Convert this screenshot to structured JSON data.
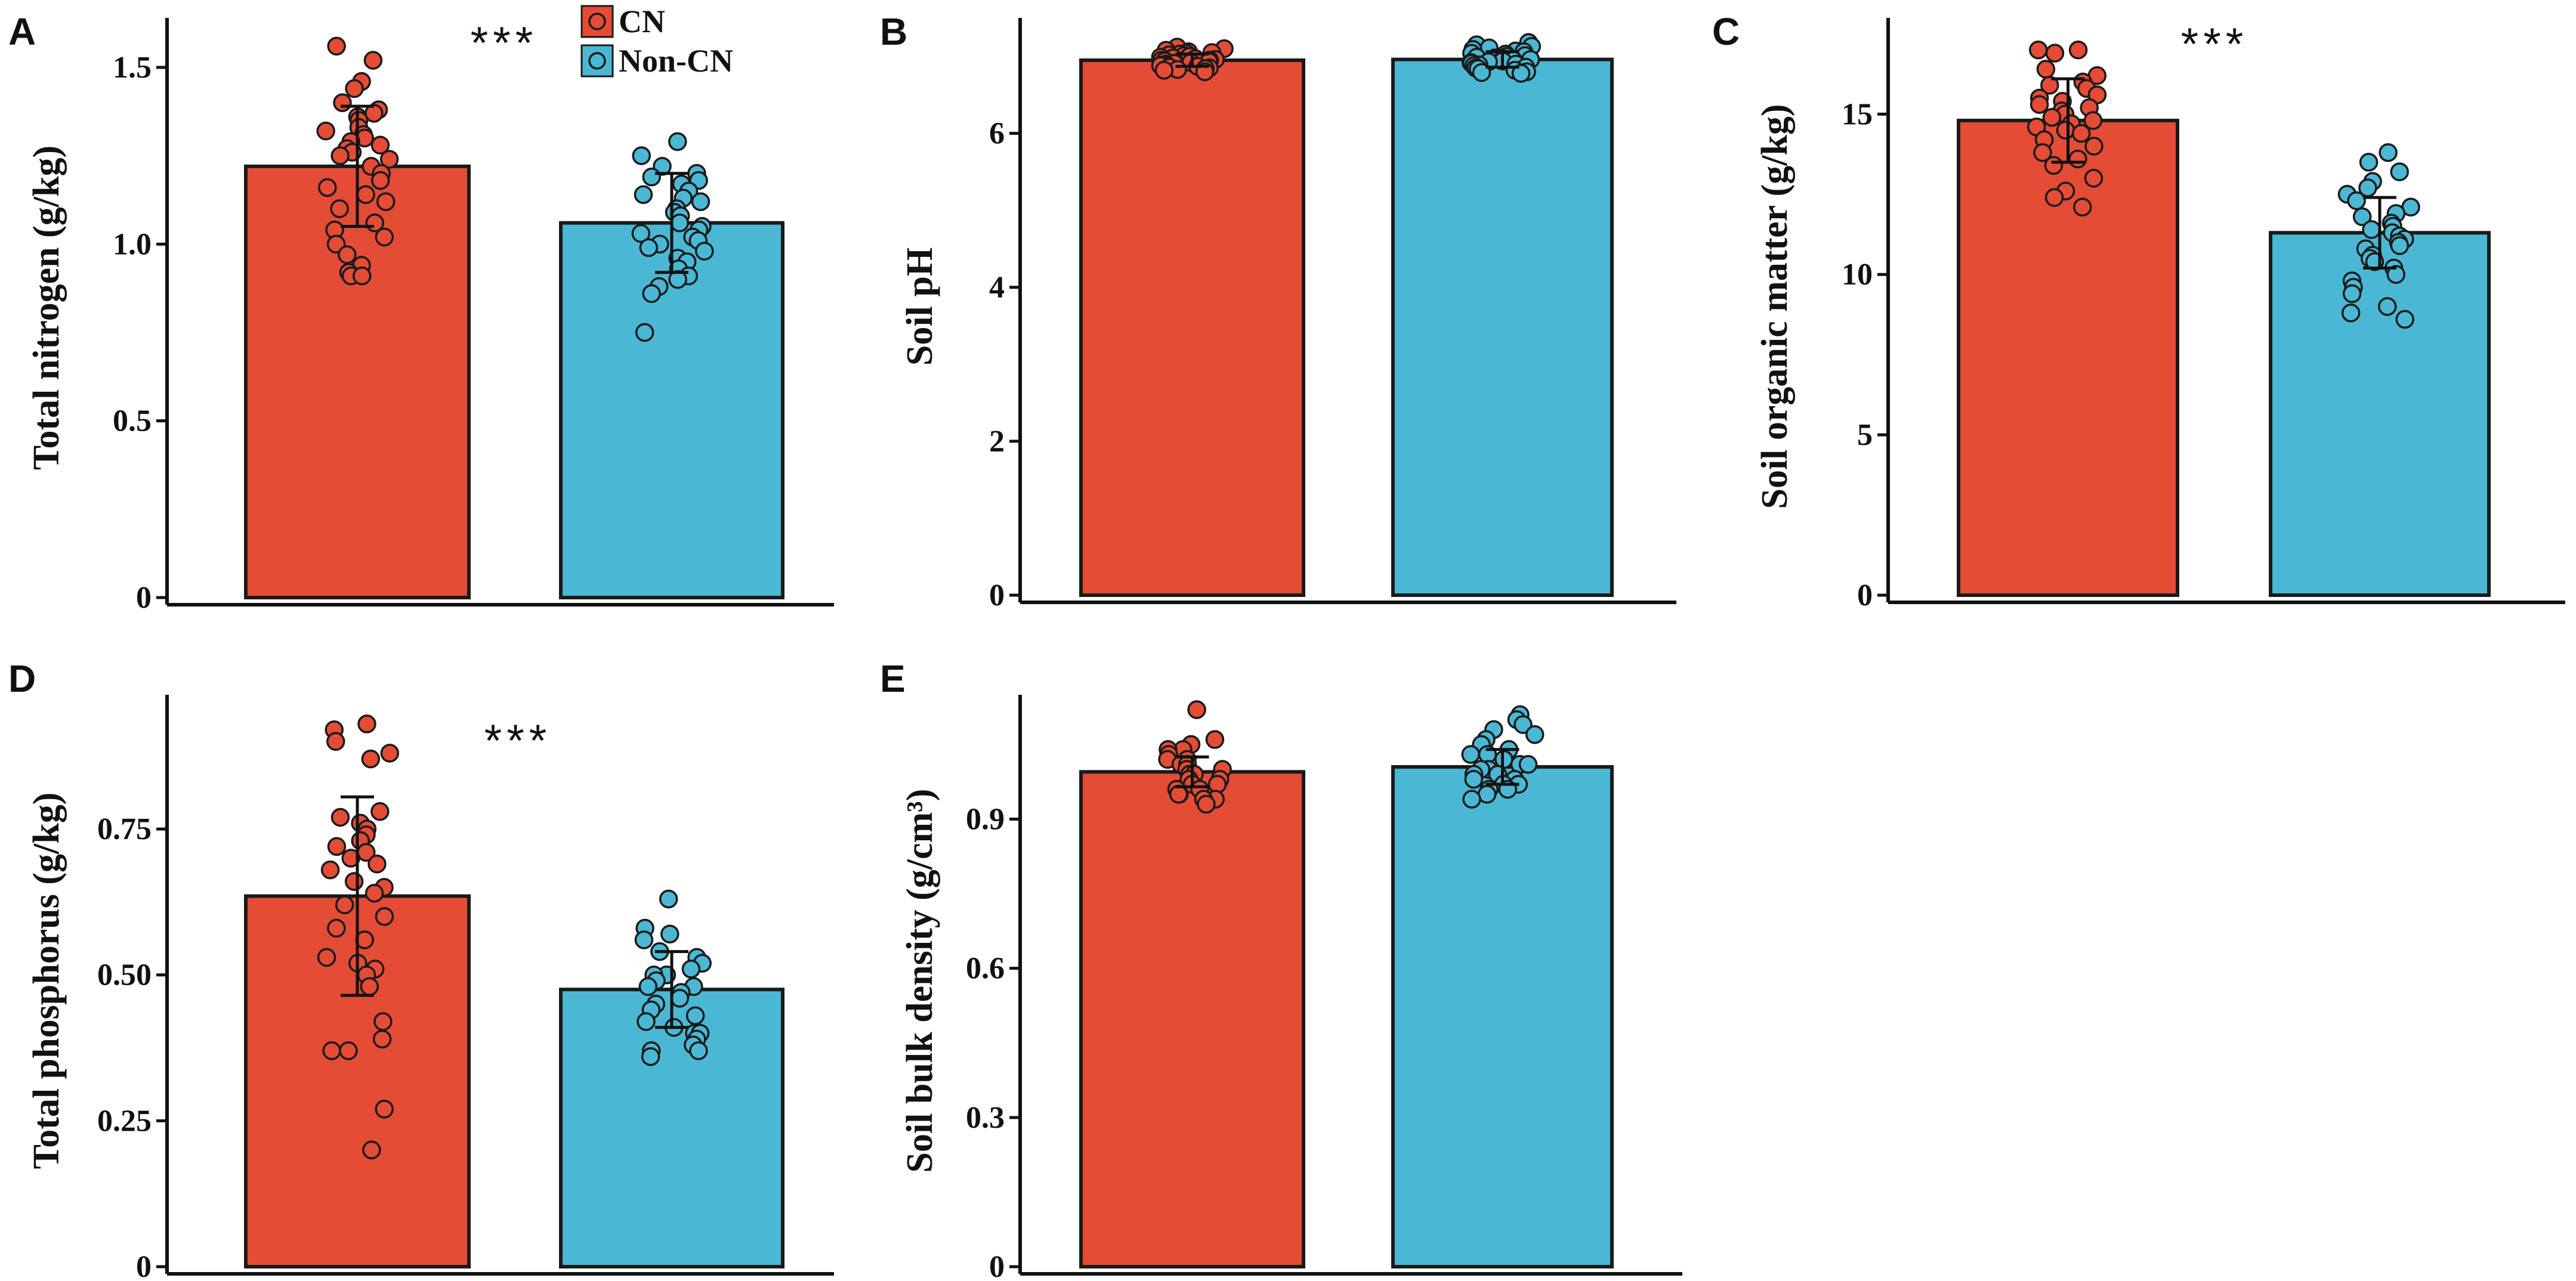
{
  "colors": {
    "CN": "#e44c36",
    "Non-CN": "#4ab8d4",
    "axis": "#111111"
  },
  "legend": {
    "items": [
      {
        "key": "CN",
        "label": "CN"
      },
      {
        "key": "Non-CN",
        "label": "Non-CN"
      }
    ]
  },
  "chart_data": [
    {
      "type": "bar",
      "panel": "A",
      "categories": [
        "CN",
        "Non-CN"
      ],
      "values": [
        1.22,
        1.06
      ],
      "error": [
        0.17,
        0.14
      ],
      "ylabel": "Total nitrogen (g/kg)",
      "ylim": [
        0,
        1.64
      ],
      "yticks": [
        0,
        0.5,
        1.0,
        1.5
      ],
      "ytick_labels": [
        "0",
        "0.5",
        "1.0",
        "1.5"
      ],
      "significance": "***",
      "points": {
        "CN": [
          1.56,
          1.52,
          1.46,
          1.44,
          1.4,
          1.38,
          1.37,
          1.36,
          1.35,
          1.33,
          1.32,
          1.31,
          1.3,
          1.29,
          1.28,
          1.27,
          1.26,
          1.25,
          1.24,
          1.22,
          1.2,
          1.18,
          1.16,
          1.14,
          1.12,
          1.1,
          1.06,
          1.04,
          1.02,
          1.0,
          0.97,
          0.94,
          0.92,
          0.91,
          0.91
        ],
        "Non-CN": [
          1.29,
          1.25,
          1.22,
          1.2,
          1.19,
          1.18,
          1.17,
          1.15,
          1.14,
          1.13,
          1.12,
          1.1,
          1.09,
          1.08,
          1.06,
          1.05,
          1.04,
          1.03,
          1.02,
          1.01,
          1.0,
          0.99,
          0.98,
          0.96,
          0.95,
          0.93,
          0.91,
          0.9,
          0.88,
          0.86,
          0.75
        ]
      }
    },
    {
      "type": "bar",
      "panel": "B",
      "categories": [
        "CN",
        "Non-CN"
      ],
      "values": [
        6.95,
        6.96
      ],
      "error": [
        0.08,
        0.1
      ],
      "ylabel": "Soil pH",
      "ylim": [
        0,
        7.5
      ],
      "yticks": [
        0,
        2,
        4,
        6
      ],
      "ytick_labels": [
        "0",
        "2",
        "4",
        "6"
      ],
      "points": {
        "CN": [
          7.12,
          7.1,
          7.08,
          7.06,
          7.05,
          7.04,
          7.03,
          7.02,
          7.01,
          7.0,
          6.99,
          6.98,
          6.97,
          6.96,
          6.95,
          6.95,
          6.94,
          6.93,
          6.92,
          6.91,
          6.9,
          6.89,
          6.88,
          6.87,
          6.86,
          6.85,
          6.84,
          6.83,
          6.82,
          6.8
        ],
        "Non-CN": [
          7.18,
          7.15,
          7.13,
          7.11,
          7.09,
          7.07,
          7.06,
          7.04,
          7.03,
          7.01,
          7.0,
          6.99,
          6.98,
          6.97,
          6.96,
          6.95,
          6.94,
          6.93,
          6.92,
          6.91,
          6.9,
          6.89,
          6.88,
          6.86,
          6.85,
          6.84,
          6.82,
          6.8,
          6.79,
          6.78
        ]
      }
    },
    {
      "type": "bar",
      "panel": "C",
      "categories": [
        "CN",
        "Non-CN"
      ],
      "values": [
        14.8,
        11.3
      ],
      "error": [
        1.3,
        1.1
      ],
      "ylabel": "Soil organic matter (g/kg)",
      "ylim": [
        0,
        18
      ],
      "yticks": [
        0,
        5,
        10,
        15
      ],
      "ytick_labels": [
        "0",
        "5",
        "10",
        "15"
      ],
      "significance": "***",
      "points": {
        "CN": [
          17.0,
          17.0,
          16.9,
          16.4,
          16.2,
          16.0,
          15.9,
          15.8,
          15.6,
          15.5,
          15.4,
          15.3,
          15.2,
          15.1,
          15.0,
          14.9,
          14.8,
          14.7,
          14.6,
          14.5,
          14.4,
          14.2,
          14.0,
          13.8,
          13.6,
          13.4,
          13.0,
          12.6,
          12.4,
          12.1
        ],
        "Non-CN": [
          13.8,
          13.5,
          13.2,
          12.9,
          12.7,
          12.5,
          12.3,
          12.1,
          11.9,
          11.8,
          11.6,
          11.5,
          11.4,
          11.3,
          11.2,
          11.1,
          11.0,
          10.9,
          10.8,
          10.6,
          10.5,
          10.4,
          10.2,
          10.0,
          9.8,
          9.6,
          9.4,
          9.0,
          8.8,
          8.6
        ]
      }
    },
    {
      "type": "bar",
      "panel": "D",
      "categories": [
        "CN",
        "Non-CN"
      ],
      "values": [
        0.635,
        0.475
      ],
      "error": [
        0.17,
        0.065
      ],
      "ylabel": "Total phosphorus (g/kg)",
      "ylim": [
        0,
        0.98
      ],
      "yticks": [
        0,
        0.25,
        0.5,
        0.75
      ],
      "ytick_labels": [
        "0",
        "0.25",
        "0.50",
        "0.75"
      ],
      "significance": "***",
      "points": {
        "CN": [
          0.93,
          0.92,
          0.9,
          0.88,
          0.87,
          0.78,
          0.77,
          0.76,
          0.75,
          0.74,
          0.73,
          0.72,
          0.71,
          0.7,
          0.69,
          0.68,
          0.66,
          0.65,
          0.64,
          0.62,
          0.6,
          0.58,
          0.56,
          0.53,
          0.52,
          0.51,
          0.5,
          0.48,
          0.42,
          0.39,
          0.37,
          0.37,
          0.27,
          0.2
        ],
        "Non-CN": [
          0.63,
          0.58,
          0.57,
          0.56,
          0.54,
          0.53,
          0.52,
          0.51,
          0.5,
          0.5,
          0.49,
          0.48,
          0.48,
          0.47,
          0.46,
          0.45,
          0.44,
          0.43,
          0.42,
          0.41,
          0.4,
          0.4,
          0.39,
          0.38,
          0.37,
          0.37,
          0.36
        ]
      }
    },
    {
      "type": "bar",
      "panel": "E",
      "categories": [
        "CN",
        "Non-CN"
      ],
      "values": [
        0.995,
        1.005
      ],
      "error": [
        0.03,
        0.035
      ],
      "ylabel": "Soil bulk density (g/cm³)",
      "ylim": [
        0,
        1.15
      ],
      "yticks": [
        0,
        0.3,
        0.6,
        0.9
      ],
      "ytick_labels": [
        "0",
        "0.3",
        "0.6",
        "0.9"
      ],
      "points": {
        "CN": [
          1.12,
          1.06,
          1.05,
          1.04,
          1.04,
          1.03,
          1.02,
          1.02,
          1.01,
          1.01,
          1.0,
          1.0,
          0.99,
          0.99,
          0.98,
          0.98,
          0.97,
          0.97,
          0.96,
          0.96,
          0.95,
          0.95,
          0.94,
          0.94,
          0.93
        ],
        "Non-CN": [
          1.11,
          1.1,
          1.09,
          1.08,
          1.07,
          1.06,
          1.05,
          1.04,
          1.03,
          1.03,
          1.02,
          1.01,
          1.01,
          1.0,
          1.0,
          0.99,
          0.99,
          0.98,
          0.98,
          0.97,
          0.97,
          0.96,
          0.96,
          0.95,
          0.94
        ]
      }
    }
  ]
}
